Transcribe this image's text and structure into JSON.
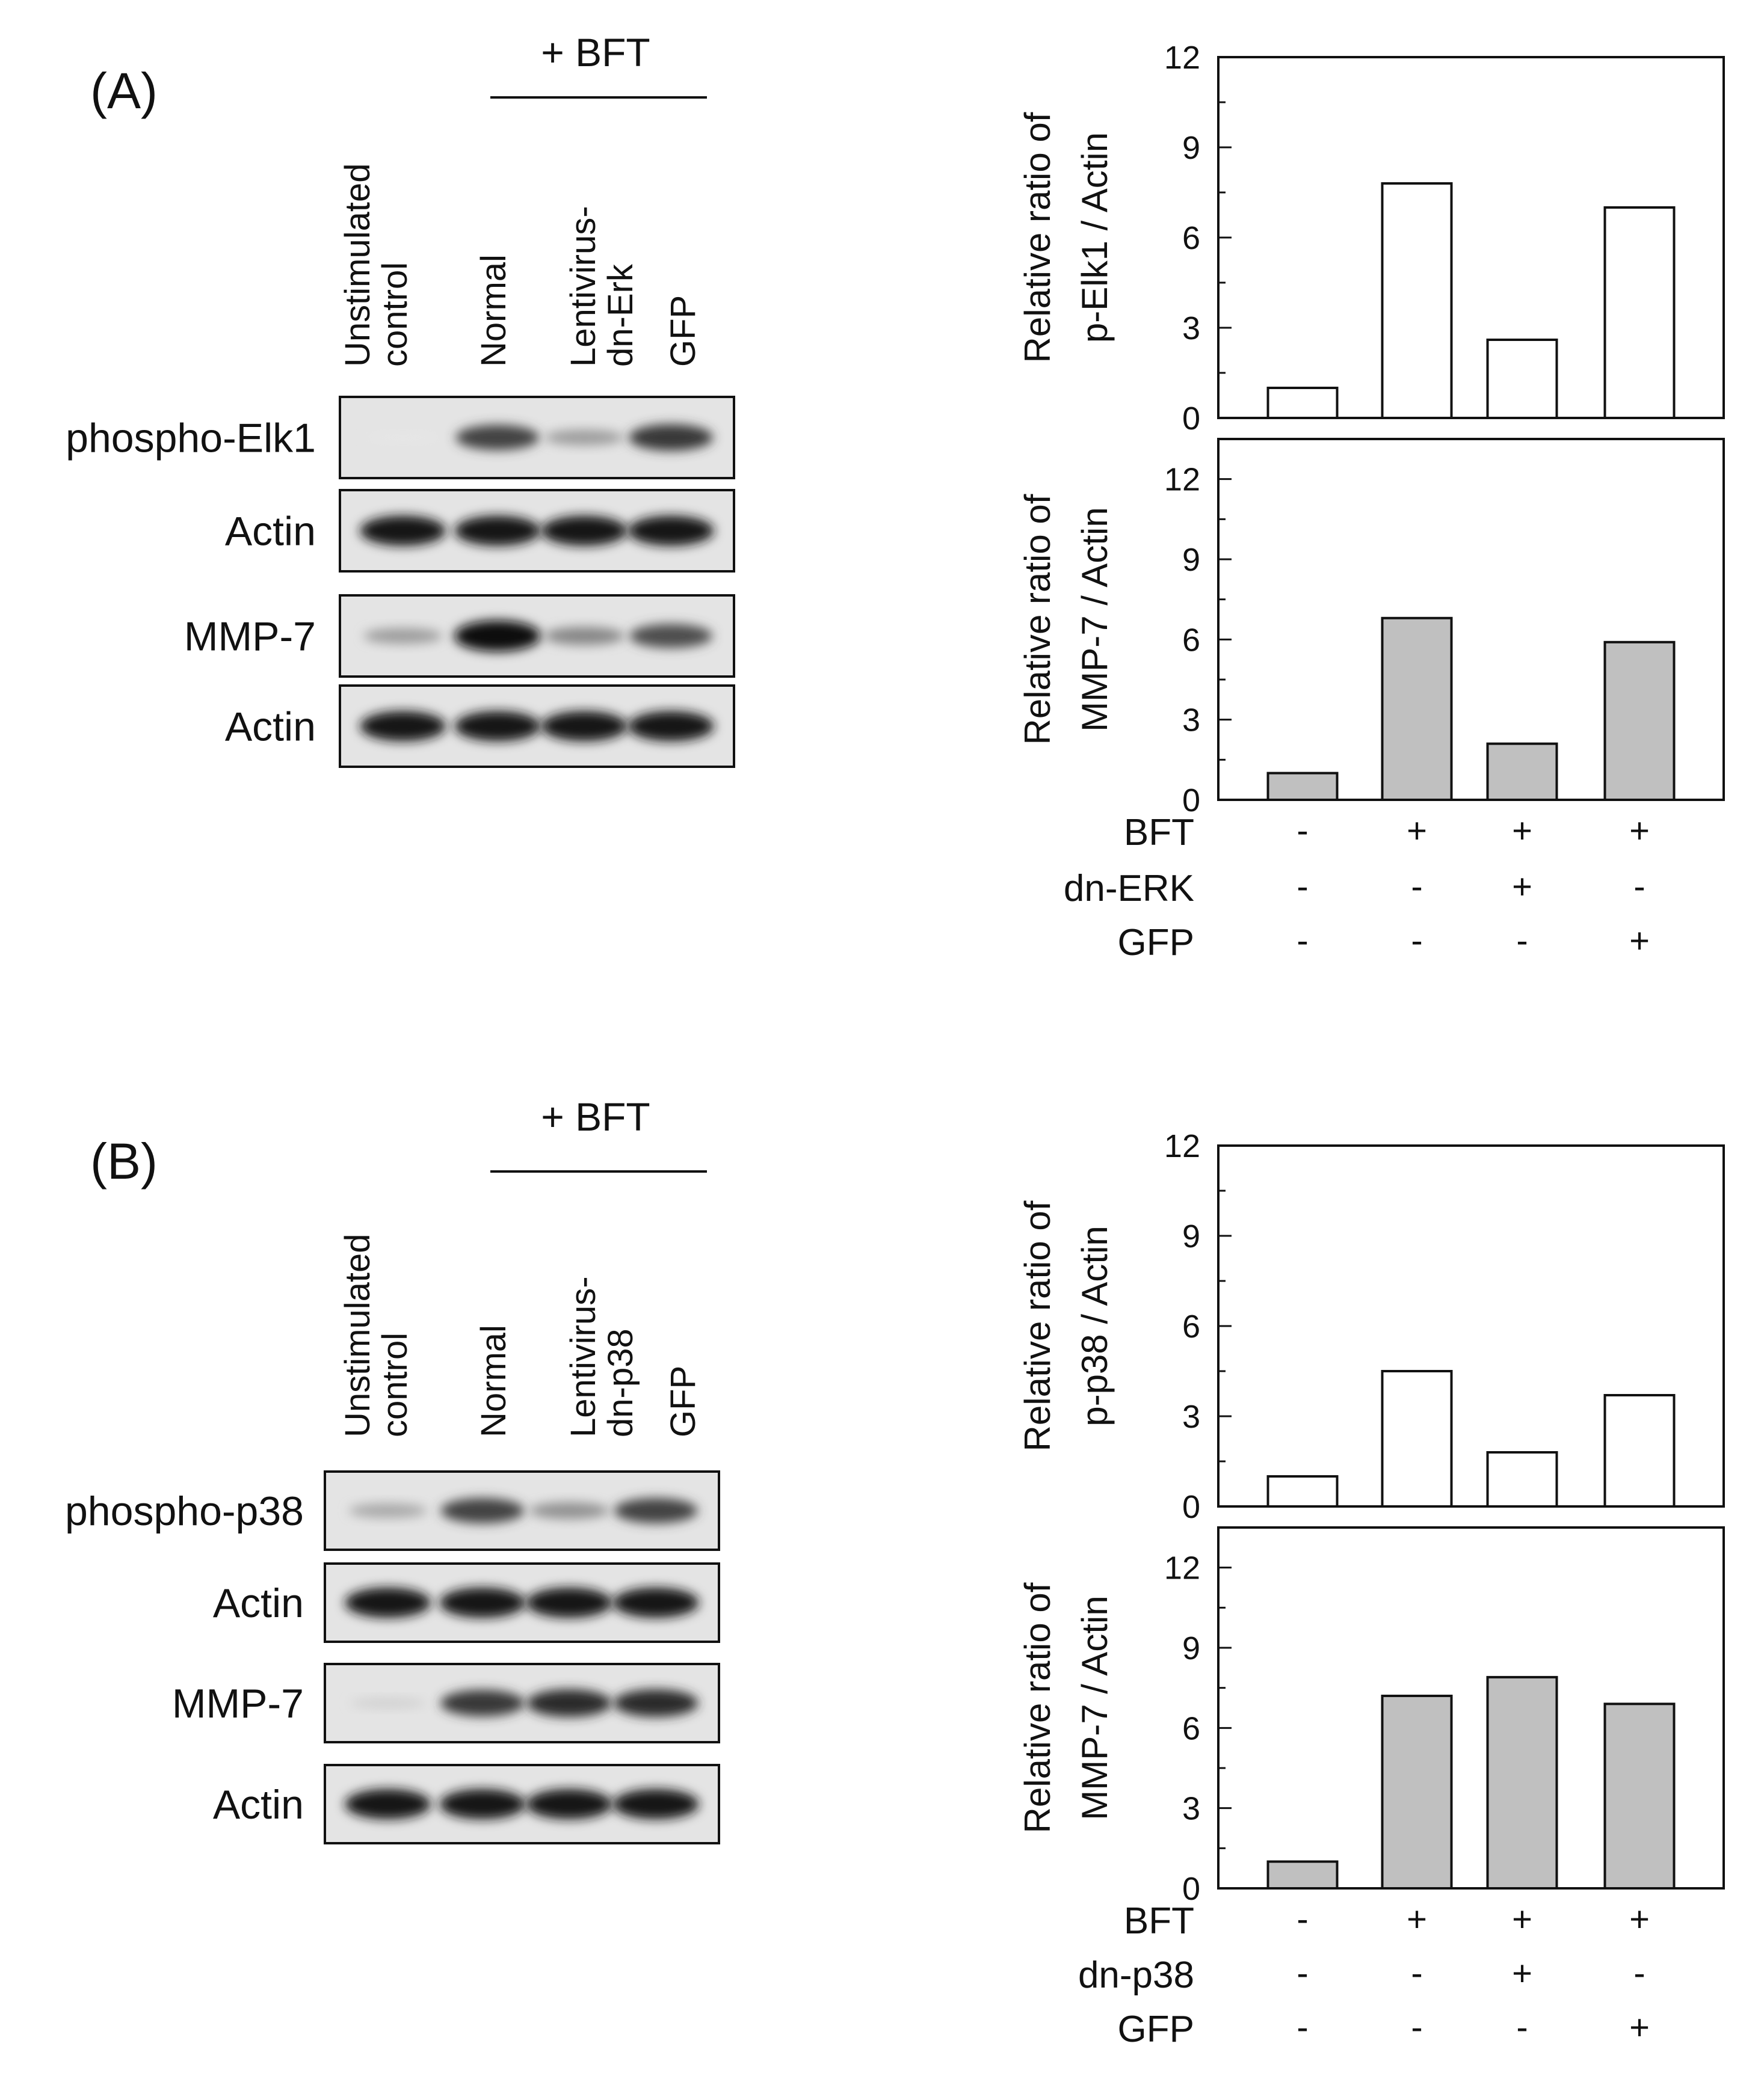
{
  "panels": [
    {
      "id": "A",
      "label": "(A)",
      "treatment_label": "+ BFT",
      "lanes": [
        [
          "Unstimulated",
          "control"
        ],
        [
          "Normal"
        ],
        [
          "Lentivirus-",
          "dn-Erk"
        ],
        [
          "GFP"
        ]
      ],
      "blots": [
        {
          "label": "phospho-Elk1",
          "intensity": [
            0.02,
            0.75,
            0.35,
            0.8
          ]
        },
        {
          "label": "Actin",
          "intensity": [
            0.95,
            0.95,
            0.95,
            0.95
          ]
        },
        {
          "label": "MMP-7",
          "intensity": [
            0.35,
            1.0,
            0.45,
            0.7
          ]
        },
        {
          "label": "Actin",
          "intensity": [
            0.95,
            0.95,
            0.95,
            0.95
          ]
        }
      ],
      "conditions": [
        {
          "label": "BFT",
          "values": [
            "-",
            "+",
            "+",
            "+"
          ]
        },
        {
          "label": "dn-ERK",
          "values": [
            "-",
            "-",
            "+",
            "-"
          ]
        },
        {
          "label": "GFP",
          "values": [
            "-",
            "-",
            "-",
            "+"
          ]
        }
      ]
    },
    {
      "id": "B",
      "label": "(B)",
      "treatment_label": "+ BFT",
      "lanes": [
        [
          "Unstimulated",
          "control"
        ],
        [
          "Normal"
        ],
        [
          "Lentivirus-",
          "dn-p38"
        ],
        [
          "GFP"
        ]
      ],
      "blots": [
        {
          "label": "phospho-p38",
          "intensity": [
            0.3,
            0.75,
            0.4,
            0.75
          ]
        },
        {
          "label": "Actin",
          "intensity": [
            0.95,
            0.95,
            0.95,
            0.95
          ]
        },
        {
          "label": "MMP-7",
          "intensity": [
            0.12,
            0.8,
            0.85,
            0.85
          ]
        },
        {
          "label": "Actin",
          "intensity": [
            0.95,
            0.95,
            0.95,
            0.95
          ]
        }
      ],
      "conditions": [
        {
          "label": "BFT",
          "values": [
            "-",
            "+",
            "+",
            "+"
          ]
        },
        {
          "label": "dn-p38",
          "values": [
            "-",
            "-",
            "+",
            "-"
          ]
        },
        {
          "label": "GFP",
          "values": [
            "-",
            "-",
            "-",
            "+"
          ]
        }
      ]
    }
  ],
  "chart_data": [
    {
      "type": "bar",
      "panel": "A",
      "ylabel": [
        "Relative ratio of",
        "p-Elk1 / Actin"
      ],
      "yticks": [
        0,
        3,
        6,
        9,
        12
      ],
      "ylim": [
        0,
        12
      ],
      "values": [
        1.0,
        7.8,
        2.6,
        7.0
      ],
      "fill": "#ffffff"
    },
    {
      "type": "bar",
      "panel": "A",
      "ylabel": [
        "Relative ratio of",
        "MMP-7 / Actin"
      ],
      "yticks": [
        0,
        3,
        6,
        9,
        12
      ],
      "ylim": [
        0,
        13.5
      ],
      "values": [
        1.0,
        6.8,
        2.1,
        5.9
      ],
      "fill": "#c0c0c0"
    },
    {
      "type": "bar",
      "panel": "B",
      "ylabel": [
        "Relative ratio of",
        "p-p38 / Actin"
      ],
      "yticks": [
        0,
        3,
        6,
        9,
        12
      ],
      "ylim": [
        0,
        12
      ],
      "values": [
        1.0,
        4.5,
        1.8,
        3.7
      ],
      "fill": "#ffffff"
    },
    {
      "type": "bar",
      "panel": "B",
      "ylabel": [
        "Relative ratio of",
        "MMP-7 / Actin"
      ],
      "yticks": [
        0,
        3,
        6,
        9,
        12
      ],
      "ylim": [
        0,
        13.5
      ],
      "values": [
        1.0,
        7.2,
        7.9,
        6.9
      ],
      "fill": "#c0c0c0"
    }
  ]
}
